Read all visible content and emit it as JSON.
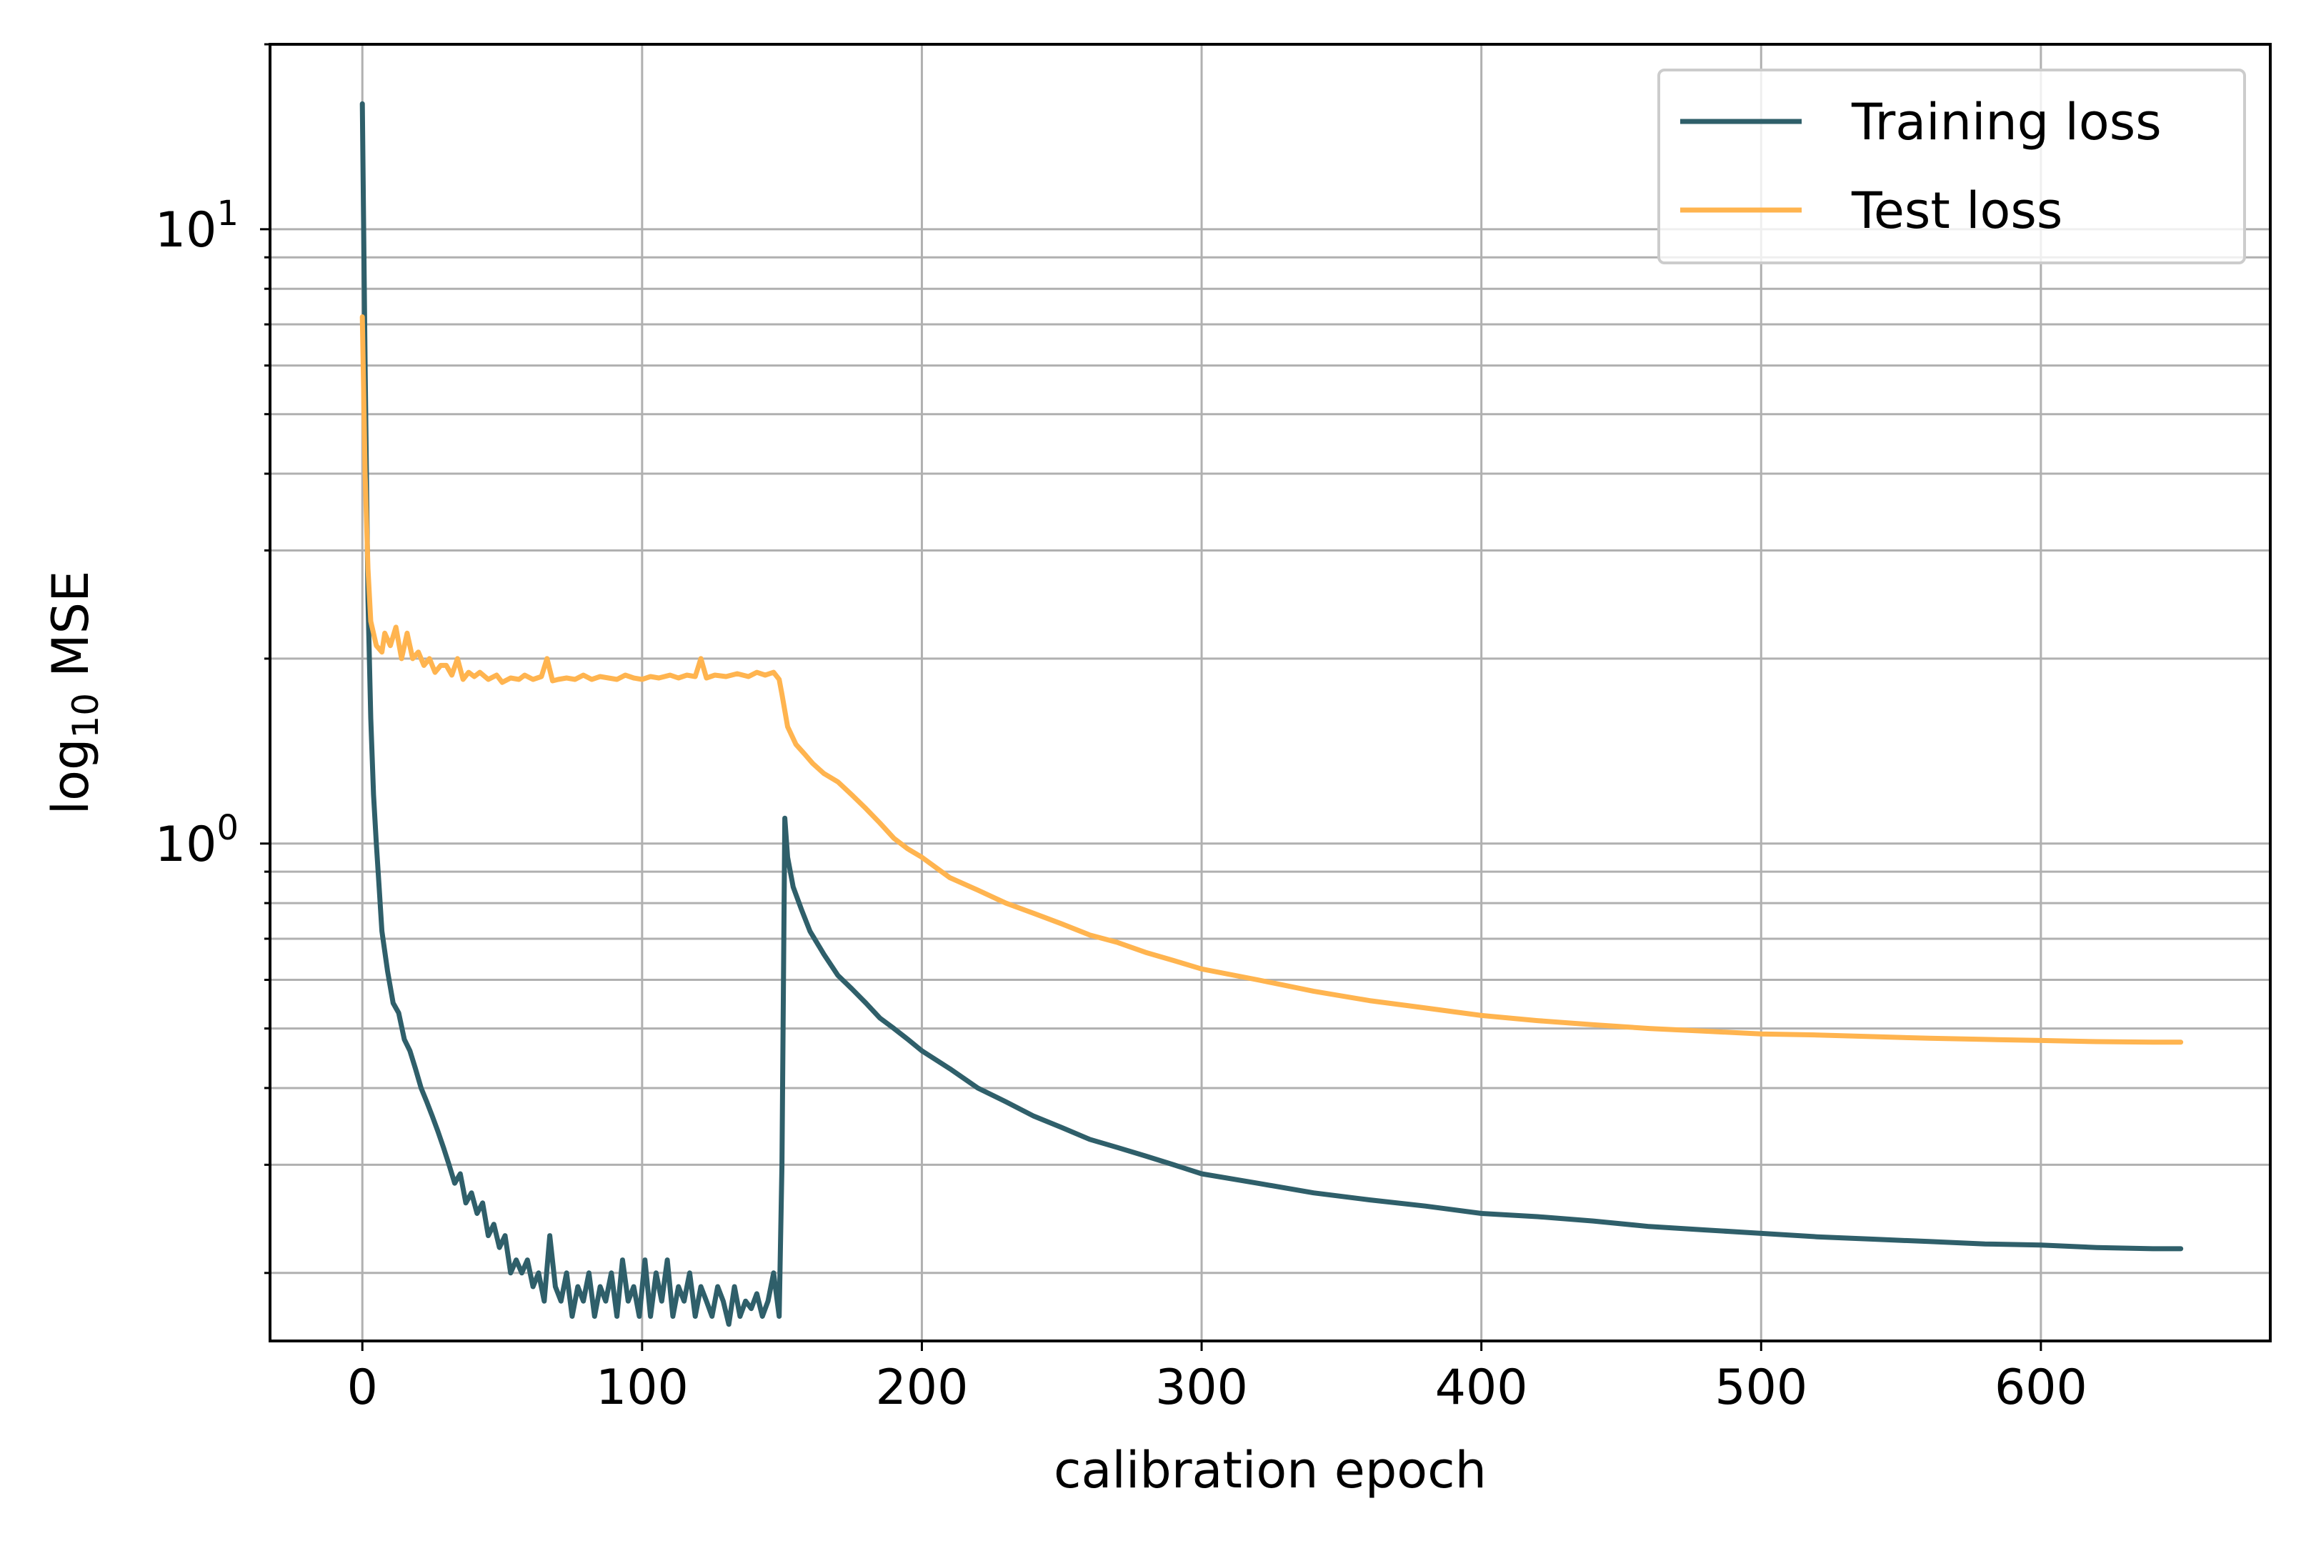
{
  "chart_data": {
    "type": "line",
    "title": "",
    "xlabel": "calibration epoch",
    "ylabel_main": "log",
    "ylabel_sub": "10",
    "ylabel_rest": " MSE",
    "xlim": [
      -33,
      682
    ],
    "ylim": [
      0.155,
      20
    ],
    "y_scale": "log",
    "grid": true,
    "grid_minor_y": true,
    "legend_position": "top-right",
    "x_ticks": [
      0,
      100,
      200,
      300,
      400,
      500,
      600
    ],
    "x_tick_labels": [
      "0",
      "100",
      "200",
      "300",
      "400",
      "500",
      "600"
    ],
    "y_major_ticks": [
      {
        "value": 1,
        "base": "10",
        "exp": "0"
      },
      {
        "value": 10,
        "base": "10",
        "exp": "1"
      }
    ],
    "series": [
      {
        "name": "Training loss",
        "color": "#2f5f6a",
        "points": [
          [
            0,
            16.0
          ],
          [
            1,
            6.0
          ],
          [
            2,
            2.5
          ],
          [
            3,
            1.6
          ],
          [
            4,
            1.2
          ],
          [
            5,
            1.0
          ],
          [
            6,
            0.85
          ],
          [
            7,
            0.72
          ],
          [
            9,
            0.62
          ],
          [
            11,
            0.55
          ],
          [
            13,
            0.53
          ],
          [
            15,
            0.48
          ],
          [
            17,
            0.46
          ],
          [
            19,
            0.43
          ],
          [
            21,
            0.4
          ],
          [
            23,
            0.38
          ],
          [
            25,
            0.36
          ],
          [
            27,
            0.34
          ],
          [
            29,
            0.32
          ],
          [
            31,
            0.3
          ],
          [
            33,
            0.28
          ],
          [
            35,
            0.29
          ],
          [
            37,
            0.26
          ],
          [
            39,
            0.27
          ],
          [
            41,
            0.25
          ],
          [
            43,
            0.26
          ],
          [
            45,
            0.23
          ],
          [
            47,
            0.24
          ],
          [
            49,
            0.22
          ],
          [
            51,
            0.23
          ],
          [
            53,
            0.2
          ],
          [
            55,
            0.21
          ],
          [
            57,
            0.2
          ],
          [
            59,
            0.21
          ],
          [
            61,
            0.19
          ],
          [
            63,
            0.2
          ],
          [
            65,
            0.18
          ],
          [
            67,
            0.23
          ],
          [
            69,
            0.19
          ],
          [
            71,
            0.18
          ],
          [
            73,
            0.2
          ],
          [
            75,
            0.17
          ],
          [
            77,
            0.19
          ],
          [
            79,
            0.18
          ],
          [
            81,
            0.2
          ],
          [
            83,
            0.17
          ],
          [
            85,
            0.19
          ],
          [
            87,
            0.18
          ],
          [
            89,
            0.2
          ],
          [
            91,
            0.17
          ],
          [
            93,
            0.21
          ],
          [
            95,
            0.18
          ],
          [
            97,
            0.19
          ],
          [
            99,
            0.17
          ],
          [
            101,
            0.21
          ],
          [
            103,
            0.17
          ],
          [
            105,
            0.2
          ],
          [
            107,
            0.18
          ],
          [
            109,
            0.21
          ],
          [
            111,
            0.17
          ],
          [
            113,
            0.19
          ],
          [
            115,
            0.18
          ],
          [
            117,
            0.2
          ],
          [
            119,
            0.17
          ],
          [
            121,
            0.19
          ],
          [
            123,
            0.18
          ],
          [
            125,
            0.17
          ],
          [
            127,
            0.19
          ],
          [
            129,
            0.18
          ],
          [
            131,
            0.165
          ],
          [
            133,
            0.19
          ],
          [
            135,
            0.17
          ],
          [
            137,
            0.18
          ],
          [
            139,
            0.175
          ],
          [
            141,
            0.185
          ],
          [
            143,
            0.17
          ],
          [
            145,
            0.18
          ],
          [
            147,
            0.2
          ],
          [
            149,
            0.17
          ],
          [
            150,
            0.3
          ],
          [
            151,
            1.1
          ],
          [
            152,
            0.95
          ],
          [
            154,
            0.85
          ],
          [
            157,
            0.78
          ],
          [
            160,
            0.72
          ],
          [
            165,
            0.66
          ],
          [
            170,
            0.61
          ],
          [
            175,
            0.58
          ],
          [
            180,
            0.55
          ],
          [
            185,
            0.52
          ],
          [
            190,
            0.5
          ],
          [
            195,
            0.48
          ],
          [
            200,
            0.46
          ],
          [
            210,
            0.43
          ],
          [
            220,
            0.4
          ],
          [
            230,
            0.38
          ],
          [
            240,
            0.36
          ],
          [
            250,
            0.345
          ],
          [
            260,
            0.33
          ],
          [
            270,
            0.32
          ],
          [
            280,
            0.31
          ],
          [
            290,
            0.3
          ],
          [
            300,
            0.29
          ],
          [
            320,
            0.28
          ],
          [
            340,
            0.27
          ],
          [
            360,
            0.263
          ],
          [
            380,
            0.257
          ],
          [
            400,
            0.25
          ],
          [
            420,
            0.247
          ],
          [
            440,
            0.243
          ],
          [
            460,
            0.238
          ],
          [
            480,
            0.235
          ],
          [
            500,
            0.232
          ],
          [
            520,
            0.229
          ],
          [
            540,
            0.227
          ],
          [
            560,
            0.225
          ],
          [
            580,
            0.223
          ],
          [
            600,
            0.222
          ],
          [
            620,
            0.22
          ],
          [
            640,
            0.219
          ],
          [
            650,
            0.219
          ]
        ]
      },
      {
        "name": "Test loss",
        "color": "#ffb44f",
        "points": [
          [
            0,
            7.2
          ],
          [
            1,
            4.0
          ],
          [
            2,
            2.8
          ],
          [
            3,
            2.3
          ],
          [
            5,
            2.1
          ],
          [
            7,
            2.05
          ],
          [
            8,
            2.2
          ],
          [
            10,
            2.1
          ],
          [
            12,
            2.25
          ],
          [
            14,
            2.0
          ],
          [
            16,
            2.2
          ],
          [
            18,
            2.0
          ],
          [
            20,
            2.05
          ],
          [
            22,
            1.95
          ],
          [
            24,
            2.0
          ],
          [
            26,
            1.9
          ],
          [
            28,
            1.95
          ],
          [
            30,
            1.95
          ],
          [
            32,
            1.88
          ],
          [
            34,
            2.0
          ],
          [
            36,
            1.85
          ],
          [
            38,
            1.9
          ],
          [
            40,
            1.87
          ],
          [
            42,
            1.9
          ],
          [
            45,
            1.85
          ],
          [
            48,
            1.88
          ],
          [
            50,
            1.83
          ],
          [
            53,
            1.86
          ],
          [
            56,
            1.85
          ],
          [
            58,
            1.88
          ],
          [
            61,
            1.85
          ],
          [
            64,
            1.87
          ],
          [
            66,
            2.0
          ],
          [
            68,
            1.84
          ],
          [
            70,
            1.85
          ],
          [
            73,
            1.86
          ],
          [
            76,
            1.85
          ],
          [
            79,
            1.88
          ],
          [
            82,
            1.85
          ],
          [
            85,
            1.87
          ],
          [
            88,
            1.86
          ],
          [
            91,
            1.85
          ],
          [
            94,
            1.88
          ],
          [
            97,
            1.86
          ],
          [
            100,
            1.85
          ],
          [
            103,
            1.87
          ],
          [
            106,
            1.86
          ],
          [
            110,
            1.88
          ],
          [
            113,
            1.86
          ],
          [
            116,
            1.88
          ],
          [
            119,
            1.87
          ],
          [
            121,
            2.0
          ],
          [
            123,
            1.86
          ],
          [
            126,
            1.88
          ],
          [
            130,
            1.87
          ],
          [
            134,
            1.89
          ],
          [
            138,
            1.87
          ],
          [
            141,
            1.9
          ],
          [
            144,
            1.88
          ],
          [
            147,
            1.9
          ],
          [
            149,
            1.85
          ],
          [
            150,
            1.75
          ],
          [
            152,
            1.55
          ],
          [
            155,
            1.45
          ],
          [
            158,
            1.4
          ],
          [
            161,
            1.35
          ],
          [
            165,
            1.3
          ],
          [
            170,
            1.26
          ],
          [
            175,
            1.2
          ],
          [
            180,
            1.14
          ],
          [
            185,
            1.08
          ],
          [
            190,
            1.02
          ],
          [
            195,
            0.98
          ],
          [
            200,
            0.95
          ],
          [
            210,
            0.88
          ],
          [
            220,
            0.84
          ],
          [
            230,
            0.8
          ],
          [
            240,
            0.77
          ],
          [
            250,
            0.74
          ],
          [
            260,
            0.71
          ],
          [
            270,
            0.69
          ],
          [
            280,
            0.665
          ],
          [
            290,
            0.645
          ],
          [
            300,
            0.625
          ],
          [
            320,
            0.6
          ],
          [
            340,
            0.575
          ],
          [
            360,
            0.555
          ],
          [
            380,
            0.54
          ],
          [
            400,
            0.525
          ],
          [
            420,
            0.515
          ],
          [
            440,
            0.507
          ],
          [
            460,
            0.5
          ],
          [
            480,
            0.495
          ],
          [
            500,
            0.49
          ],
          [
            520,
            0.488
          ],
          [
            540,
            0.485
          ],
          [
            560,
            0.482
          ],
          [
            580,
            0.48
          ],
          [
            600,
            0.478
          ],
          [
            620,
            0.476
          ],
          [
            640,
            0.475
          ],
          [
            650,
            0.475
          ]
        ]
      }
    ]
  }
}
